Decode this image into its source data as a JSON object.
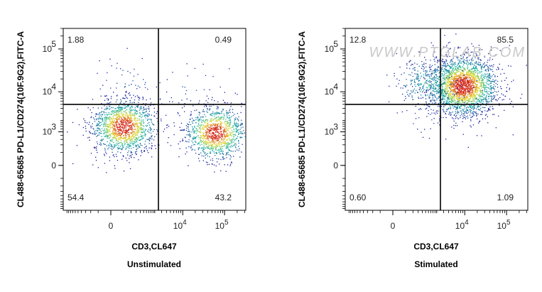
{
  "chart_data": [
    {
      "type": "scatter",
      "title": "",
      "caption": "Unstimulated",
      "xlabel": "CD3,CL647",
      "ylabel": "CL488-65685 PD-L1/CD274(10F.9G2),FITC-A",
      "x_scale": "biexponential",
      "y_scale": "biexponential",
      "x_ticks": [
        {
          "value": 0,
          "label": "0"
        },
        {
          "value": 10000,
          "label": "10",
          "exp": "4"
        },
        {
          "value": 100000,
          "label": "10",
          "exp": "5"
        }
      ],
      "y_ticks": [
        {
          "value": 0,
          "label": "0"
        },
        {
          "value": 1000,
          "label": "10",
          "exp": "3"
        },
        {
          "value": 10000,
          "label": "10",
          "exp": "4"
        },
        {
          "value": 100000,
          "label": "10",
          "exp": "5"
        }
      ],
      "gate": {
        "x": 2500,
        "y": 5000
      },
      "quadrants": {
        "top_left": "1.88",
        "top_right": "0.49",
        "bottom_left": "54.4",
        "bottom_right": "43.2"
      },
      "populations": [
        {
          "x_center": 200,
          "y_center": 1400,
          "spread": 0.6,
          "percent": 54.4
        },
        {
          "x_center": 60000,
          "y_center": 950,
          "spread": 0.55,
          "percent": 43.2
        },
        {
          "x_center": 300,
          "y_center": 15000,
          "spread": 0.6,
          "percent": 1.88
        },
        {
          "x_center": 20000,
          "y_center": 12000,
          "spread": 0.6,
          "percent": 0.49
        }
      ],
      "watermark": ""
    },
    {
      "type": "scatter",
      "title": "",
      "caption": "Stimulated",
      "xlabel": "CD3,CL647",
      "ylabel": "CL488-65685 PD-L1/CD274(10F.9G2),FITC-A",
      "x_scale": "biexponential",
      "y_scale": "biexponential",
      "x_ticks": [
        {
          "value": 0,
          "label": "0"
        },
        {
          "value": 10000,
          "label": "10",
          "exp": "4"
        },
        {
          "value": 100000,
          "label": "10",
          "exp": "5"
        }
      ],
      "y_ticks": [
        {
          "value": 0,
          "label": "0"
        },
        {
          "value": 1000,
          "label": "10",
          "exp": "3"
        },
        {
          "value": 10000,
          "label": "10",
          "exp": "4"
        },
        {
          "value": 100000,
          "label": "10",
          "exp": "5"
        }
      ],
      "gate": {
        "x": 2500,
        "y": 5000
      },
      "quadrants": {
        "top_left": "12.8",
        "top_right": "85.5",
        "bottom_left": "0.60",
        "bottom_right": "1.09"
      },
      "populations": [
        {
          "x_center": 9000,
          "y_center": 14000,
          "spread": 0.7,
          "percent": 85.5
        },
        {
          "x_center": 1200,
          "y_center": 16000,
          "spread": 0.55,
          "percent": 12.8
        },
        {
          "x_center": 800,
          "y_center": 3000,
          "spread": 0.4,
          "percent": 0.6
        },
        {
          "x_center": 12000,
          "y_center": 3000,
          "spread": 0.4,
          "percent": 1.09
        }
      ],
      "watermark": "WWW.PTGLAB.COM"
    }
  ],
  "colors": {
    "axis": "#000000",
    "gate_line": "#000000",
    "density_low": "#1a1aa0",
    "density_mid": "#17b3a3",
    "density_high": "#d62a1a"
  }
}
